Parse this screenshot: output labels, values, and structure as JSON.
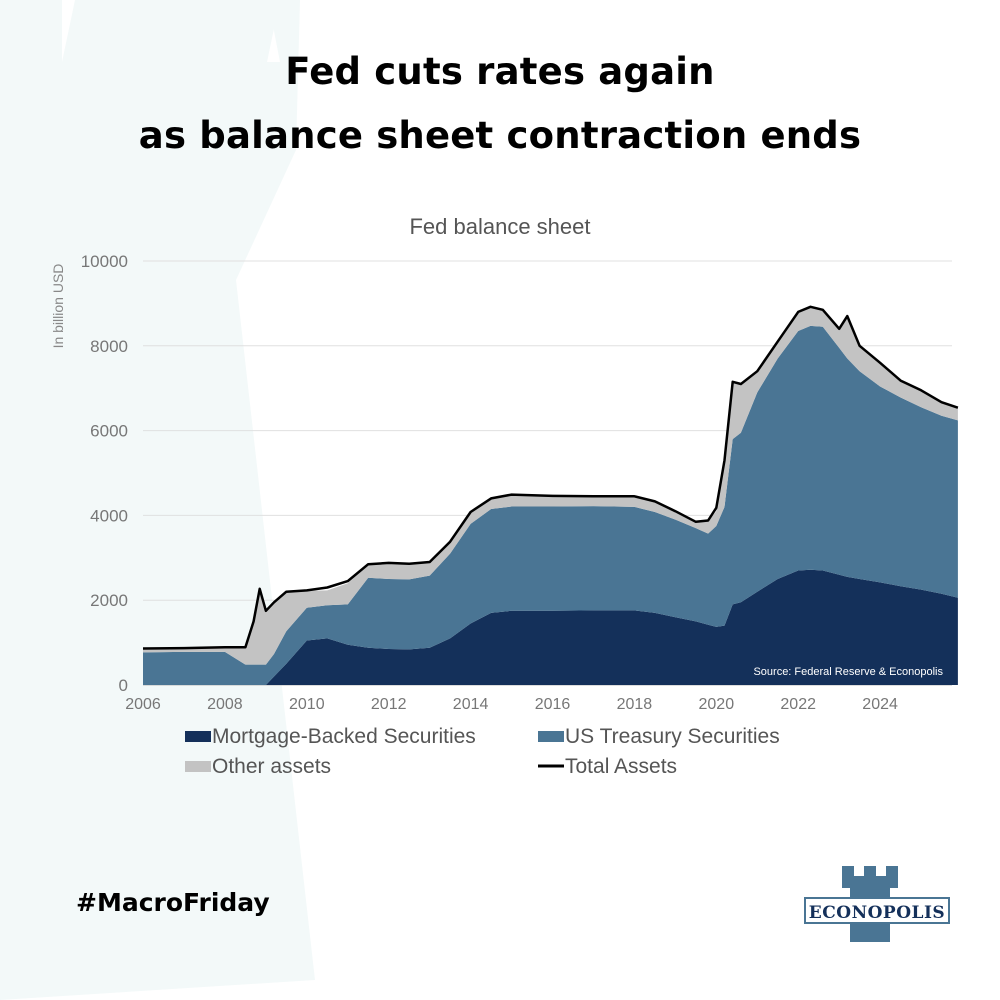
{
  "headline": {
    "line1": "Fed cuts rates again",
    "line2": "as balance sheet contraction ends"
  },
  "hashtag": "#MacroFriday",
  "brand": {
    "name": "ECONOPOLIS",
    "icon": "castle-tower-icon",
    "color": "#4a7594"
  },
  "chart_data": {
    "type": "area",
    "title": "Fed balance sheet",
    "xlabel": "",
    "ylabel": "In billion USD",
    "xlim": [
      2006,
      2025.9
    ],
    "ylim": [
      0,
      10000
    ],
    "grid": true,
    "x_ticks": [
      "2006",
      "2008",
      "2010",
      "2012",
      "2014",
      "2016",
      "2018",
      "2020",
      "2022",
      "2024"
    ],
    "y_ticks": [
      "0",
      "2000",
      "4000",
      "6000",
      "8000",
      "10000"
    ],
    "source": "Source: Federal Reserve & Econopolis",
    "legend_position": "bottom",
    "colors": {
      "mbs": "#14305a",
      "treasury": "#4a7594",
      "other": "#c3c3c3",
      "total": "#000000"
    },
    "x": [
      2006.0,
      2007.0,
      2008.0,
      2008.5,
      2008.7,
      2008.85,
      2009.0,
      2009.2,
      2009.5,
      2010.0,
      2010.5,
      2011.0,
      2011.5,
      2012.0,
      2012.5,
      2013.0,
      2013.5,
      2014.0,
      2014.5,
      2015.0,
      2016.0,
      2017.0,
      2018.0,
      2018.5,
      2019.0,
      2019.5,
      2019.8,
      2020.0,
      2020.2,
      2020.4,
      2020.6,
      2021.0,
      2021.5,
      2022.0,
      2022.3,
      2022.6,
      2023.0,
      2023.2,
      2023.5,
      2024.0,
      2024.5,
      2025.0,
      2025.5,
      2025.9
    ],
    "series": [
      {
        "name": "Mortgage-Backed Securities",
        "key": "mbs",
        "values": [
          0,
          0,
          0,
          0,
          0,
          0,
          0,
          200,
          500,
          1050,
          1100,
          950,
          880,
          850,
          840,
          880,
          1100,
          1450,
          1700,
          1750,
          1750,
          1760,
          1760,
          1700,
          1600,
          1500,
          1420,
          1370,
          1400,
          1900,
          1950,
          2200,
          2500,
          2700,
          2720,
          2700,
          2600,
          2550,
          2500,
          2420,
          2330,
          2250,
          2150,
          2060
        ]
      },
      {
        "name": "US Treasury Securities",
        "key": "treasury",
        "values": [
          770,
          780,
          780,
          480,
          480,
          480,
          480,
          530,
          770,
          770,
          780,
          950,
          1650,
          1650,
          1650,
          1700,
          2000,
          2350,
          2450,
          2460,
          2460,
          2460,
          2440,
          2380,
          2300,
          2200,
          2150,
          2380,
          2800,
          3900,
          4000,
          4700,
          5200,
          5650,
          5750,
          5750,
          5350,
          5150,
          4900,
          4620,
          4450,
          4300,
          4200,
          4180
        ]
      },
      {
        "name": "Other assets",
        "key": "other",
        "values": [
          80,
          80,
          100,
          400,
          1000,
          1780,
          1250,
          1200,
          900,
          400,
          350,
          500,
          300,
          380,
          360,
          300,
          280,
          250,
          230,
          280,
          240,
          220,
          250,
          250,
          200,
          150,
          300,
          350,
          1000,
          1350,
          1150,
          500,
          400,
          450,
          450,
          400,
          450,
          950,
          600,
          560,
          400,
          380,
          320,
          300
        ]
      },
      {
        "name": "Total Assets",
        "key": "total",
        "type": "line",
        "values": [
          860,
          870,
          890,
          890,
          1500,
          2270,
          1750,
          1950,
          2200,
          2230,
          2300,
          2450,
          2850,
          2880,
          2860,
          2900,
          3380,
          4080,
          4400,
          4490,
          4460,
          4450,
          4450,
          4330,
          4100,
          3850,
          3880,
          4180,
          5300,
          7150,
          7100,
          7400,
          8100,
          8800,
          8920,
          8850,
          8400,
          8700,
          8000,
          7600,
          7180,
          6950,
          6670,
          6540
        ]
      }
    ],
    "legend": [
      {
        "label": "Mortgage-Backed Securities",
        "key": "mbs",
        "kind": "swatch"
      },
      {
        "label": "US Treasury Securities",
        "key": "treasury",
        "kind": "swatch"
      },
      {
        "label": "Other assets",
        "key": "other",
        "kind": "swatch"
      },
      {
        "label": "Total Assets",
        "key": "total",
        "kind": "line"
      }
    ]
  }
}
